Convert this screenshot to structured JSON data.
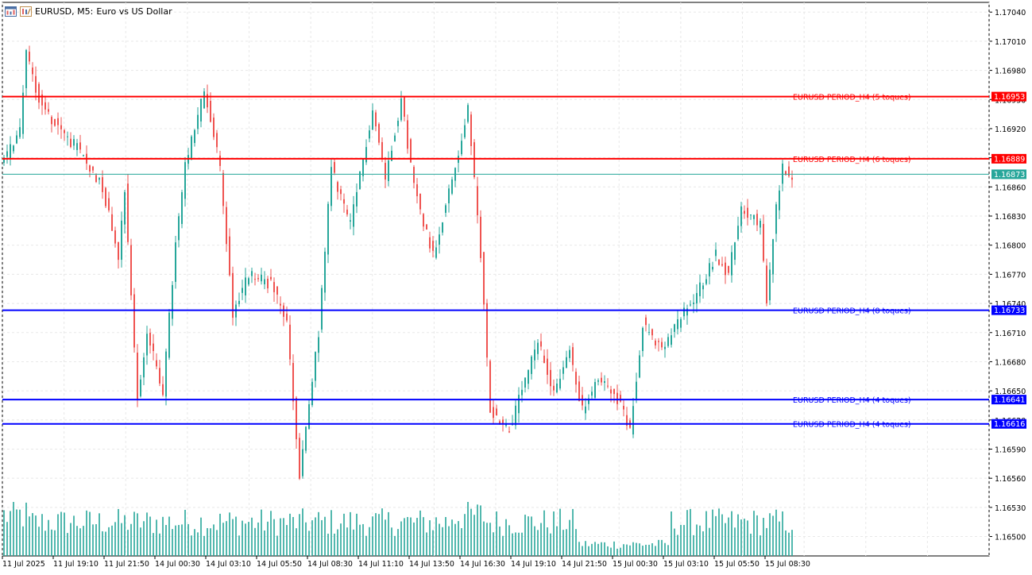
{
  "window": {
    "symbol_label": "EURUSD, M5:",
    "description": "Euro vs US Dollar"
  },
  "colors": {
    "bull": "#26a69a",
    "bear": "#ef5350",
    "volume": "#26a69a",
    "grid": "#e8e8e8",
    "resistance": "#ff0000",
    "support": "#0000ff",
    "current_price": "#26a69a",
    "axis_text": "#000000"
  },
  "icons": [
    "chart-window-icon",
    "chart-properties-icon"
  ],
  "chart_data": {
    "type": "candlestick",
    "y_range": [
      1.1648,
      1.1705
    ],
    "y_ticks": [
      "1.17040",
      "1.17010",
      "1.16980",
      "1.16950",
      "1.16920",
      "1.16890",
      "1.16860",
      "1.16830",
      "1.16800",
      "1.16770",
      "1.16740",
      "1.16710",
      "1.16680",
      "1.16650",
      "1.16620",
      "1.16590",
      "1.16560",
      "1.16530",
      "1.16500"
    ],
    "x_ticks": [
      "11 Jul 2025",
      "11 Jul 19:10",
      "11 Jul 21:50",
      "14 Jul 00:30",
      "14 Jul 03:10",
      "14 Jul 05:50",
      "14 Jul 08:30",
      "14 Jul 11:10",
      "14 Jul 13:50",
      "14 Jul 16:30",
      "14 Jul 19:10",
      "14 Jul 21:50",
      "15 Jul 00:30",
      "15 Jul 03:10",
      "15 Jul 05:50",
      "15 Jul 08:30"
    ],
    "x_grid_steps": 16,
    "candle_count": 249,
    "path_anchors": [
      [
        0,
        1.1688
      ],
      [
        6,
        1.1692
      ],
      [
        8,
        1.17
      ],
      [
        12,
        1.1695
      ],
      [
        18,
        1.1692
      ],
      [
        24,
        1.169
      ],
      [
        32,
        1.1686
      ],
      [
        37,
        1.1679
      ],
      [
        39,
        1.1686
      ],
      [
        43,
        1.1664
      ],
      [
        46,
        1.1671
      ],
      [
        51,
        1.1665
      ],
      [
        55,
        1.168
      ],
      [
        58,
        1.1688
      ],
      [
        64,
        1.1696
      ],
      [
        69,
        1.1688
      ],
      [
        73,
        1.1673
      ],
      [
        78,
        1.1677
      ],
      [
        85,
        1.1676
      ],
      [
        90,
        1.1672
      ],
      [
        94,
        1.1656
      ],
      [
        100,
        1.1671
      ],
      [
        104,
        1.1688
      ],
      [
        110,
        1.1682
      ],
      [
        117,
        1.1694
      ],
      [
        121,
        1.1687
      ],
      [
        126,
        1.1695
      ],
      [
        130,
        1.1686
      ],
      [
        136,
        1.1679
      ],
      [
        143,
        1.1688
      ],
      [
        147,
        1.1694
      ],
      [
        151,
        1.1679
      ],
      [
        154,
        1.1663
      ],
      [
        160,
        1.1661
      ],
      [
        164,
        1.1665
      ],
      [
        169,
        1.167
      ],
      [
        174,
        1.1665
      ],
      [
        179,
        1.1669
      ],
      [
        183,
        1.1663
      ],
      [
        188,
        1.1666
      ],
      [
        193,
        1.1665
      ],
      [
        198,
        1.1661
      ],
      [
        202,
        1.1672
      ],
      [
        208,
        1.1669
      ],
      [
        213,
        1.1672
      ],
      [
        219,
        1.1675
      ],
      [
        225,
        1.1679
      ],
      [
        229,
        1.1677
      ],
      [
        233,
        1.1684
      ],
      [
        239,
        1.1682
      ],
      [
        241,
        1.1674
      ],
      [
        244,
        1.1684
      ],
      [
        246,
        1.1688
      ],
      [
        249,
        1.16873
      ]
    ],
    "levels": [
      {
        "price": "1.16953",
        "label": "EURUSD PERIOD_H4 (5 toques)",
        "kind": "resistance"
      },
      {
        "price": "1.16889",
        "label": "EURUSD PERIOD_H4 (6 toques)",
        "kind": "resistance"
      },
      {
        "price": "1.16733",
        "label": "EURUSD PERIOD_H4 (8 toques)",
        "kind": "support"
      },
      {
        "price": "1.16641",
        "label": "EURUSD PERIOD_H4 (4 toques)",
        "kind": "support"
      },
      {
        "price": "1.16616",
        "label": "EURUSD PERIOD_H4 (4 toques)",
        "kind": "support"
      }
    ],
    "current_price": "1.16873"
  }
}
